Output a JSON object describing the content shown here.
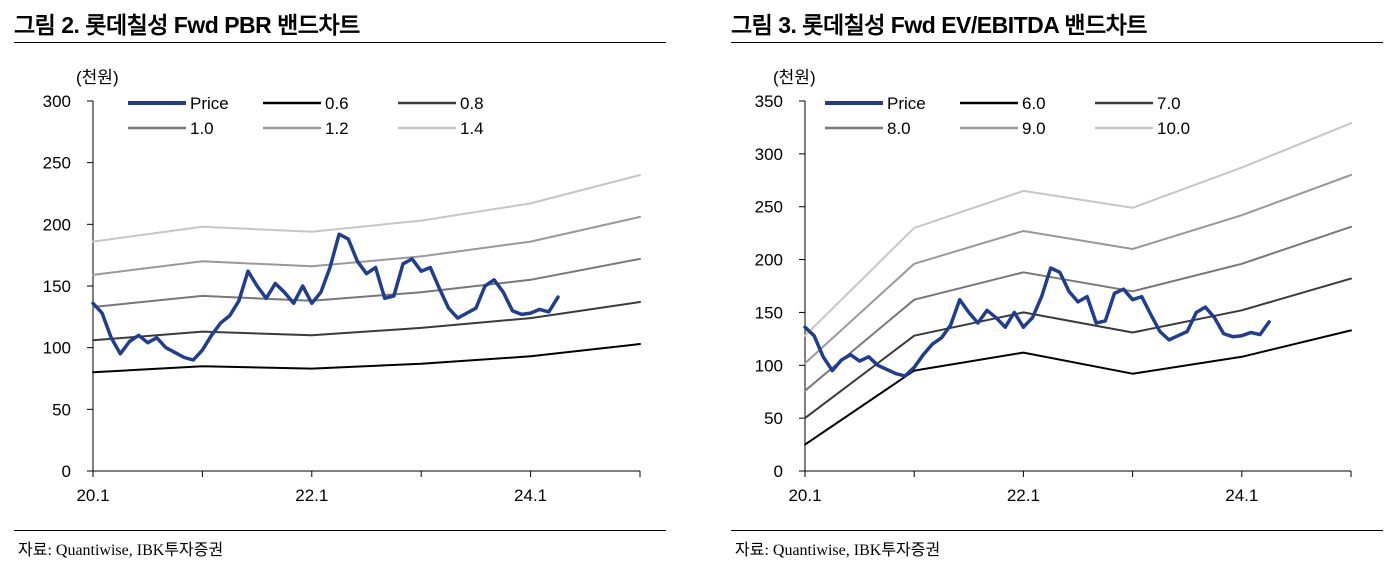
{
  "figures": [
    {
      "title": "그림 2. 롯데칠성 Fwd PBR 밴드차트",
      "source": "자료: Quantiwise, IBK투자증권",
      "chart_data": {
        "type": "line",
        "unit_label": "(천원)",
        "x_ticks": [
          "20.1",
          "22.1",
          "24.1"
        ],
        "x_range": [
          "2020-01",
          "2025-01"
        ],
        "y_ticks": [
          0,
          50,
          100,
          150,
          200,
          250,
          300
        ],
        "ylim": [
          0,
          300
        ],
        "grid": false,
        "legend_position": "top-left",
        "series": [
          {
            "name": "Price",
            "color": "#1f3e8f",
            "points": [
              [
                "2020-01",
                136
              ],
              [
                "2020-02",
                128
              ],
              [
                "2020-03",
                108
              ],
              [
                "2020-04",
                95
              ],
              [
                "2020-05",
                105
              ],
              [
                "2020-06",
                110
              ],
              [
                "2020-07",
                104
              ],
              [
                "2020-08",
                108
              ],
              [
                "2020-09",
                100
              ],
              [
                "2020-10",
                96
              ],
              [
                "2020-11",
                92
              ],
              [
                "2020-12",
                90
              ],
              [
                "2021-01",
                98
              ],
              [
                "2021-02",
                110
              ],
              [
                "2021-03",
                120
              ],
              [
                "2021-04",
                126
              ],
              [
                "2021-05",
                138
              ],
              [
                "2021-06",
                162
              ],
              [
                "2021-07",
                150
              ],
              [
                "2021-08",
                140
              ],
              [
                "2021-09",
                152
              ],
              [
                "2021-10",
                145
              ],
              [
                "2021-11",
                136
              ],
              [
                "2021-12",
                150
              ],
              [
                "2022-01",
                136
              ],
              [
                "2022-02",
                145
              ],
              [
                "2022-03",
                165
              ],
              [
                "2022-04",
                192
              ],
              [
                "2022-05",
                188
              ],
              [
                "2022-06",
                170
              ],
              [
                "2022-07",
                160
              ],
              [
                "2022-08",
                165
              ],
              [
                "2022-09",
                140
              ],
              [
                "2022-10",
                142
              ],
              [
                "2022-11",
                168
              ],
              [
                "2022-12",
                172
              ],
              [
                "2023-01",
                162
              ],
              [
                "2023-02",
                165
              ],
              [
                "2023-03",
                148
              ],
              [
                "2023-04",
                132
              ],
              [
                "2023-05",
                124
              ],
              [
                "2023-06",
                128
              ],
              [
                "2023-07",
                132
              ],
              [
                "2023-08",
                150
              ],
              [
                "2023-09",
                155
              ],
              [
                "2023-10",
                145
              ],
              [
                "2023-11",
                130
              ],
              [
                "2023-12",
                127
              ],
              [
                "2024-01",
                128
              ],
              [
                "2024-02",
                131
              ],
              [
                "2024-03",
                129
              ],
              [
                "2024-04",
                141
              ]
            ]
          },
          {
            "name": "0.6",
            "color": "#000000",
            "points": [
              [
                "2020-01",
                80
              ],
              [
                "2021-01",
                85
              ],
              [
                "2022-01",
                83
              ],
              [
                "2023-01",
                87
              ],
              [
                "2024-01",
                93
              ],
              [
                "2025-01",
                103
              ]
            ]
          },
          {
            "name": "0.8",
            "color": "#3a3a3a",
            "points": [
              [
                "2020-01",
                106
              ],
              [
                "2021-01",
                113
              ],
              [
                "2022-01",
                110
              ],
              [
                "2023-01",
                116
              ],
              [
                "2024-01",
                124
              ],
              [
                "2025-01",
                137
              ]
            ]
          },
          {
            "name": "1.0",
            "color": "#777777",
            "points": [
              [
                "2020-01",
                133
              ],
              [
                "2021-01",
                142
              ],
              [
                "2022-01",
                138
              ],
              [
                "2023-01",
                145
              ],
              [
                "2024-01",
                155
              ],
              [
                "2025-01",
                172
              ]
            ]
          },
          {
            "name": "1.2",
            "color": "#999999",
            "points": [
              [
                "2020-01",
                159
              ],
              [
                "2021-01",
                170
              ],
              [
                "2022-01",
                166
              ],
              [
                "2023-01",
                174
              ],
              [
                "2024-01",
                186
              ],
              [
                "2025-01",
                206
              ]
            ]
          },
          {
            "name": "1.4",
            "color": "#c6c6c6",
            "points": [
              [
                "2020-01",
                186
              ],
              [
                "2021-01",
                198
              ],
              [
                "2022-01",
                194
              ],
              [
                "2023-01",
                203
              ],
              [
                "2024-01",
                217
              ],
              [
                "2025-01",
                240
              ]
            ]
          }
        ]
      }
    },
    {
      "title": "그림 3. 롯데칠성 Fwd EV/EBITDA 밴드차트",
      "source": "자료: Quantiwise, IBK투자증권",
      "chart_data": {
        "type": "line",
        "unit_label": "(천원)",
        "x_ticks": [
          "20.1",
          "22.1",
          "24.1"
        ],
        "x_range": [
          "2020-01",
          "2025-01"
        ],
        "y_ticks": [
          0,
          50,
          100,
          150,
          200,
          250,
          300,
          350
        ],
        "ylim": [
          0,
          350
        ],
        "grid": false,
        "legend_position": "top-left",
        "series": [
          {
            "name": "Price",
            "color": "#1f3e8f",
            "points": [
              [
                "2020-01",
                136
              ],
              [
                "2020-02",
                128
              ],
              [
                "2020-03",
                108
              ],
              [
                "2020-04",
                95
              ],
              [
                "2020-05",
                105
              ],
              [
                "2020-06",
                110
              ],
              [
                "2020-07",
                104
              ],
              [
                "2020-08",
                108
              ],
              [
                "2020-09",
                100
              ],
              [
                "2020-10",
                96
              ],
              [
                "2020-11",
                92
              ],
              [
                "2020-12",
                90
              ],
              [
                "2021-01",
                98
              ],
              [
                "2021-02",
                110
              ],
              [
                "2021-03",
                120
              ],
              [
                "2021-04",
                126
              ],
              [
                "2021-05",
                138
              ],
              [
                "2021-06",
                162
              ],
              [
                "2021-07",
                150
              ],
              [
                "2021-08",
                140
              ],
              [
                "2021-09",
                152
              ],
              [
                "2021-10",
                145
              ],
              [
                "2021-11",
                136
              ],
              [
                "2021-12",
                150
              ],
              [
                "2022-01",
                136
              ],
              [
                "2022-02",
                145
              ],
              [
                "2022-03",
                165
              ],
              [
                "2022-04",
                192
              ],
              [
                "2022-05",
                188
              ],
              [
                "2022-06",
                170
              ],
              [
                "2022-07",
                160
              ],
              [
                "2022-08",
                165
              ],
              [
                "2022-09",
                140
              ],
              [
                "2022-10",
                142
              ],
              [
                "2022-11",
                168
              ],
              [
                "2022-12",
                172
              ],
              [
                "2023-01",
                162
              ],
              [
                "2023-02",
                165
              ],
              [
                "2023-03",
                148
              ],
              [
                "2023-04",
                132
              ],
              [
                "2023-05",
                124
              ],
              [
                "2023-06",
                128
              ],
              [
                "2023-07",
                132
              ],
              [
                "2023-08",
                150
              ],
              [
                "2023-09",
                155
              ],
              [
                "2023-10",
                145
              ],
              [
                "2023-11",
                130
              ],
              [
                "2023-12",
                127
              ],
              [
                "2024-01",
                128
              ],
              [
                "2024-02",
                131
              ],
              [
                "2024-03",
                129
              ],
              [
                "2024-04",
                141
              ]
            ]
          },
          {
            "name": "6.0",
            "color": "#000000",
            "points": [
              [
                "2020-01",
                25
              ],
              [
                "2021-01",
                95
              ],
              [
                "2022-01",
                112
              ],
              [
                "2023-01",
                92
              ],
              [
                "2024-01",
                108
              ],
              [
                "2025-01",
                133
              ]
            ]
          },
          {
            "name": "7.0",
            "color": "#3a3a3a",
            "points": [
              [
                "2020-01",
                50
              ],
              [
                "2021-01",
                128
              ],
              [
                "2022-01",
                150
              ],
              [
                "2023-01",
                131
              ],
              [
                "2024-01",
                152
              ],
              [
                "2025-01",
                182
              ]
            ]
          },
          {
            "name": "8.0",
            "color": "#777777",
            "points": [
              [
                "2020-01",
                76
              ],
              [
                "2021-01",
                162
              ],
              [
                "2022-01",
                188
              ],
              [
                "2023-01",
                170
              ],
              [
                "2024-01",
                196
              ],
              [
                "2025-01",
                231
              ]
            ]
          },
          {
            "name": "9.0",
            "color": "#999999",
            "points": [
              [
                "2020-01",
                102
              ],
              [
                "2021-01",
                196
              ],
              [
                "2022-01",
                227
              ],
              [
                "2023-01",
                210
              ],
              [
                "2024-01",
                242
              ],
              [
                "2025-01",
                280
              ]
            ]
          },
          {
            "name": "10.0",
            "color": "#c6c6c6",
            "points": [
              [
                "2020-01",
                128
              ],
              [
                "2021-01",
                230
              ],
              [
                "2022-01",
                265
              ],
              [
                "2023-01",
                249
              ],
              [
                "2024-01",
                287
              ],
              [
                "2025-01",
                329
              ]
            ]
          }
        ]
      }
    }
  ]
}
